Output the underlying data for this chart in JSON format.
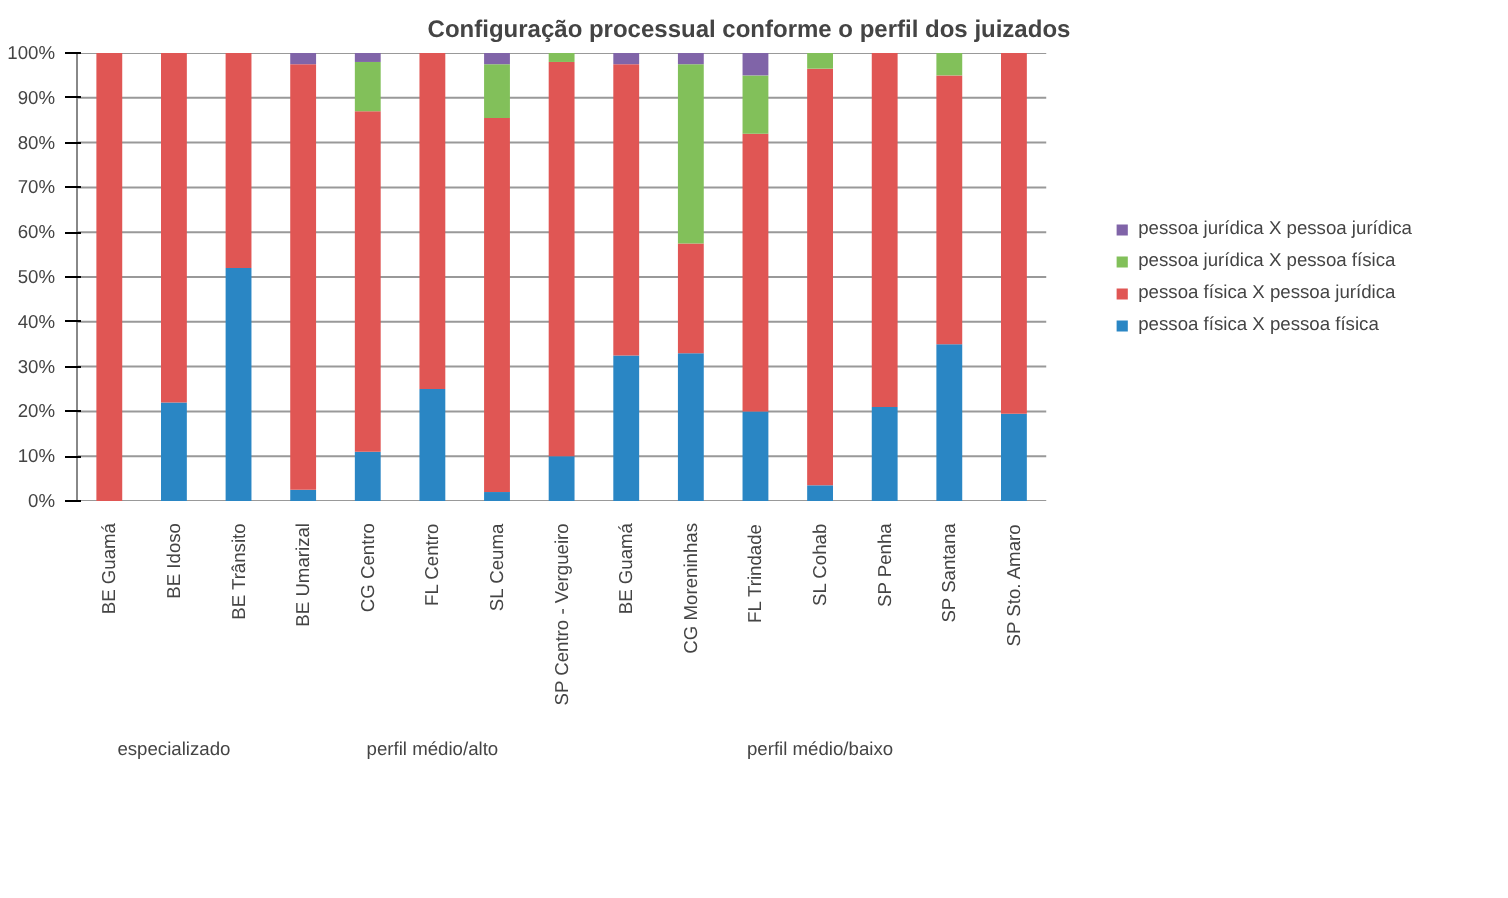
{
  "chart_data": {
    "type": "bar",
    "stacked": true,
    "title": "Configuração processual conforme o perfil dos juizados",
    "categories": [
      "BE Guamá",
      "BE Idoso",
      "BE Trânsito",
      "BE Umarizal",
      "CG Centro",
      "FL Centro",
      "SL Ceuma",
      "SP Centro - Vergueiro",
      "BE Guamá",
      "CG Moreninhas",
      "FL Trindade",
      "SL Cohab",
      "SP Penha",
      "SP Santana",
      "SP Sto. Amaro"
    ],
    "series": [
      {
        "name": "pessoa física X pessoa física",
        "color": "#2a86c4",
        "values": [
          0,
          22,
          52,
          2.5,
          11,
          25,
          2,
          10,
          32.5,
          33,
          20,
          3.5,
          21,
          35,
          19.5
        ]
      },
      {
        "name": "pessoa física X pessoa jurídica",
        "color": "#e05654",
        "values": [
          100,
          78,
          48,
          95,
          76,
          75,
          83.5,
          88,
          65,
          24.5,
          62,
          93,
          79,
          60,
          80.5
        ]
      },
      {
        "name": "pessoa jurídica X pessoa física",
        "color": "#82c05a",
        "values": [
          0,
          0,
          0,
          0,
          11,
          0,
          12,
          2,
          0,
          40,
          13,
          3.5,
          0,
          5,
          0
        ]
      },
      {
        "name": "pessoa jurídica X pessoa jurídica",
        "color": "#8064a8",
        "values": [
          0,
          0,
          0,
          2.5,
          2,
          0,
          2.5,
          0,
          2.5,
          2.5,
          5,
          0,
          0,
          0,
          0
        ]
      }
    ],
    "ylim": [
      0,
      100
    ],
    "yticks": [
      {
        "value": 0,
        "label": "0%"
      },
      {
        "value": 10,
        "label": "10%"
      },
      {
        "value": 20,
        "label": "20%"
      },
      {
        "value": 30,
        "label": "30%"
      },
      {
        "value": 40,
        "label": "40%"
      },
      {
        "value": 50,
        "label": "50%"
      },
      {
        "value": 60,
        "label": "60%"
      },
      {
        "value": 70,
        "label": "70%"
      },
      {
        "value": 80,
        "label": "80%"
      },
      {
        "value": 90,
        "label": "90%"
      },
      {
        "value": 100,
        "label": "100%"
      }
    ],
    "grid": "y",
    "legend": "right",
    "annotations": [
      "especializado",
      "perfil médio/alto",
      "perfil médio/baixo"
    ]
  }
}
